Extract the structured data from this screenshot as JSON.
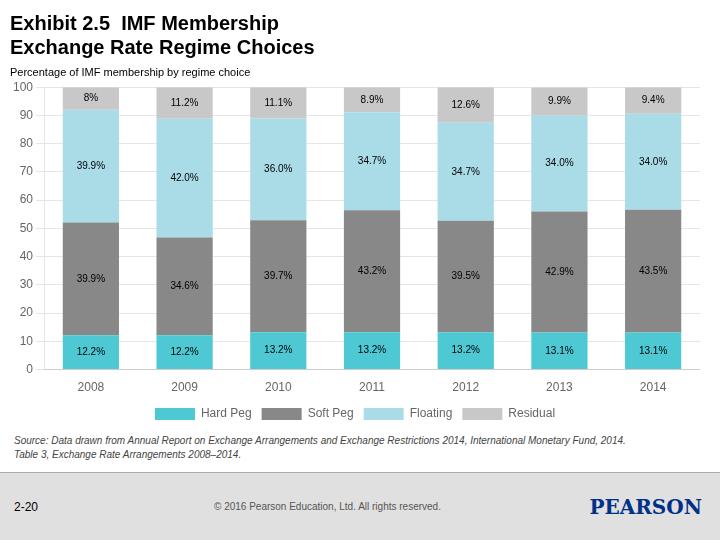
{
  "chart_data": {
    "type": "bar",
    "title": [
      "Exhibit 2.5  IMF Membership",
      "Exchange Rate Regime Choices"
    ],
    "subtitle": "Percentage of IMF membership by regime choice",
    "annotations": [
      "Source: Data drawn from Annual Report on Exchange Arrangements and Exchange Restrictions 2014, International Monetary Fund, 2014.\nTable 3, Exchange Rate Arrangements 2008–2014.",
      "2-20",
      "© 2016 Pearson Education, Ltd. All rights reserved.",
      "PEARSON"
    ],
    "categories": [
      "2008",
      "2009",
      "2010",
      "2011",
      "2012",
      "2013",
      "2014"
    ],
    "series": [
      {
        "name": "Hard Peg",
        "color": "#4ec9d4",
        "values": [
          12.2,
          12.2,
          13.2,
          13.2,
          13.2,
          13.1,
          13.1
        ],
        "value_labels": [
          "12.2%",
          "12.2%",
          "13.2%",
          "13.2%",
          "13.2%",
          "13.1%",
          "13.1%"
        ]
      },
      {
        "name": "Soft Peg",
        "color": "#888888",
        "values": [
          39.9,
          34.6,
          39.7,
          43.2,
          39.5,
          42.9,
          43.5
        ],
        "value_labels": [
          "39.9%",
          "34.6%",
          "39.7%",
          "43.2%",
          "39.5%",
          "42.9%",
          "43.5%"
        ]
      },
      {
        "name": "Floating",
        "color": "#aadce8",
        "values": [
          39.9,
          42.0,
          36.0,
          34.7,
          34.7,
          34.0,
          34.0
        ],
        "value_labels": [
          "39.9%",
          "42.0%",
          "36.0%",
          "34.7%",
          "34.7%",
          "34.0%",
          "34.0%"
        ]
      },
      {
        "name": "Residual",
        "color": "#c8c8c8",
        "values": [
          8.0,
          11.2,
          11.1,
          8.9,
          12.6,
          9.9,
          9.4
        ],
        "value_labels": [
          "8%",
          "11.2%",
          "11.1%",
          "8.9%",
          "12.6%",
          "9.9%",
          "9.4%"
        ]
      }
    ],
    "stacked": true,
    "data_labels": true,
    "ylim": [
      0,
      100
    ],
    "yticks": [
      0,
      10,
      20,
      30,
      40,
      50,
      60,
      70,
      80,
      90,
      100
    ],
    "grid": true,
    "legend": "bottom"
  }
}
